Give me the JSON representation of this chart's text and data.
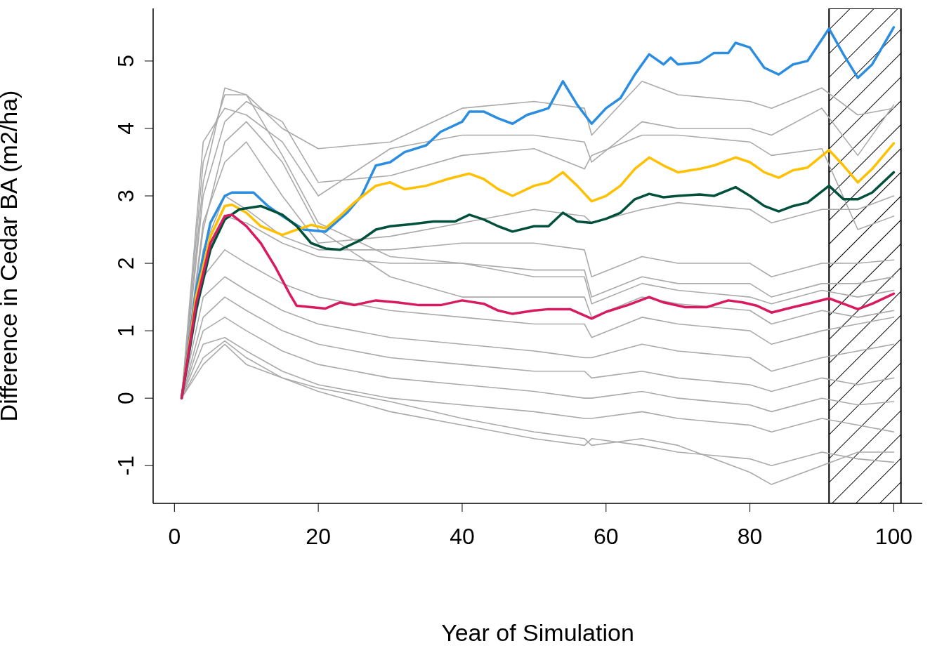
{
  "chart_data": {
    "type": "line",
    "xlabel": "Year of Simulation",
    "ylabel": "Difference in Cedar BA (m2/ha)",
    "xlim": [
      -2.96,
      103.96
    ],
    "ylim": [
      -1.56,
      5.78
    ],
    "xticks": [
      0,
      20,
      40,
      60,
      80,
      100
    ],
    "yticks": [
      -1,
      0,
      1,
      2,
      3,
      4,
      5
    ],
    "marker": "none",
    "line_style": "solid",
    "bands": [
      {
        "axis": "x",
        "from": 91,
        "to": 101,
        "color": "#000000"
      }
    ],
    "series": [
      {
        "color": "#aaaaaa",
        "x": [
          1,
          4,
          7,
          10,
          15,
          20,
          30,
          40,
          50,
          57,
          58,
          65,
          70,
          80,
          83,
          90,
          95,
          100
        ],
        "values": [
          0,
          3.5,
          4.5,
          4.5,
          4.0,
          3.7,
          3.8,
          4.3,
          4.4,
          4.3,
          3.9,
          4.7,
          4.5,
          4.4,
          4.3,
          4.6,
          4.2,
          4.3
        ]
      },
      {
        "color": "#aaaaaa",
        "x": [
          1,
          4,
          7,
          10,
          15,
          20,
          30,
          40,
          50,
          57,
          58,
          65,
          70,
          80,
          83,
          90,
          95,
          100
        ],
        "values": [
          0,
          3.8,
          4.3,
          4.2,
          3.8,
          3.0,
          3.7,
          3.9,
          3.9,
          3.8,
          3.5,
          4.1,
          4.0,
          4.0,
          3.9,
          4.3,
          3.6,
          4.35
        ]
      },
      {
        "color": "#aaaaaa",
        "x": [
          1,
          4,
          7,
          10,
          15,
          20,
          30,
          40,
          50,
          57,
          58,
          65,
          70,
          80,
          83,
          90,
          95,
          100
        ],
        "values": [
          0,
          3.0,
          4.1,
          4.4,
          4.1,
          3.2,
          3.3,
          3.6,
          3.7,
          3.4,
          3.6,
          3.9,
          3.9,
          3.8,
          3.6,
          3.7,
          2.5,
          2.7
        ]
      },
      {
        "color": "#aaaaaa",
        "x": [
          1,
          4,
          7,
          10,
          15,
          20,
          30,
          40,
          50,
          57,
          58,
          65,
          70,
          80,
          83,
          90,
          95,
          100
        ],
        "values": [
          0,
          3.2,
          4.6,
          4.5,
          3.6,
          2.6,
          2.1,
          2.0,
          1.8,
          1.8,
          1.4,
          1.7,
          1.6,
          1.5,
          1.4,
          1.6,
          1.5,
          1.6
        ]
      },
      {
        "color": "#aaaaaa",
        "x": [
          1,
          4,
          7,
          10,
          15,
          20,
          30,
          40,
          50,
          57,
          58,
          65,
          70,
          80,
          83,
          90,
          95,
          100
        ],
        "values": [
          0,
          2.5,
          3.8,
          4.1,
          3.5,
          2.5,
          1.8,
          1.5,
          1.5,
          1.5,
          1.2,
          1.5,
          1.4,
          1.3,
          1.1,
          1.3,
          1.2,
          1.3
        ]
      },
      {
        "color": "#aaaaaa",
        "x": [
          1,
          4,
          7,
          10,
          15,
          20,
          30,
          40,
          50,
          57,
          58,
          65,
          70,
          80,
          83,
          90,
          95,
          100
        ],
        "values": [
          0,
          2.6,
          3.5,
          3.8,
          3.0,
          2.3,
          2.4,
          2.6,
          2.8,
          2.7,
          2.6,
          2.8,
          2.9,
          2.8,
          2.6,
          2.8,
          2.8,
          3.0
        ]
      },
      {
        "color": "#aaaaaa",
        "x": [
          1,
          4,
          7,
          10,
          15,
          20,
          30,
          40,
          50,
          57,
          58,
          65,
          70,
          80,
          83,
          90,
          95,
          100
        ],
        "values": [
          0,
          2.2,
          3.0,
          2.8,
          2.4,
          2.2,
          2.2,
          2.3,
          2.3,
          2.2,
          1.8,
          2.1,
          2.0,
          2.0,
          1.8,
          2.0,
          2.0,
          2.05
        ]
      },
      {
        "color": "#aaaaaa",
        "x": [
          1,
          4,
          7,
          10,
          15,
          20,
          30,
          40,
          50,
          57,
          58,
          65,
          70,
          80,
          83,
          90,
          95,
          100
        ],
        "values": [
          0,
          2.0,
          2.7,
          2.6,
          2.3,
          2.1,
          2.0,
          2.0,
          1.9,
          1.9,
          1.5,
          1.8,
          1.7,
          1.7,
          1.5,
          1.7,
          1.7,
          1.8
        ]
      },
      {
        "color": "#aaaaaa",
        "x": [
          1,
          4,
          7,
          10,
          15,
          20,
          30,
          40,
          50,
          57,
          58,
          65,
          70,
          80,
          83,
          90,
          95,
          100
        ],
        "values": [
          0,
          1.8,
          2.2,
          2.0,
          1.7,
          1.5,
          1.3,
          1.2,
          1.1,
          1.1,
          0.9,
          1.2,
          1.1,
          1.0,
          0.8,
          1.0,
          1.1,
          1.2
        ]
      },
      {
        "color": "#aaaaaa",
        "x": [
          1,
          4,
          7,
          10,
          15,
          20,
          30,
          40,
          50,
          57,
          58,
          65,
          70,
          80,
          83,
          90,
          95,
          100
        ],
        "values": [
          0,
          1.5,
          1.8,
          1.6,
          1.3,
          1.1,
          0.9,
          0.8,
          0.7,
          0.6,
          0.6,
          0.8,
          0.7,
          0.6,
          0.4,
          0.6,
          0.7,
          0.8
        ]
      },
      {
        "color": "#aaaaaa",
        "x": [
          1,
          4,
          7,
          10,
          15,
          20,
          30,
          40,
          50,
          57,
          58,
          65,
          70,
          80,
          83,
          90,
          95,
          100
        ],
        "values": [
          0,
          1.2,
          1.5,
          1.3,
          1.0,
          0.8,
          0.6,
          0.5,
          0.4,
          0.4,
          0.3,
          0.4,
          0.3,
          0.2,
          0.1,
          0.3,
          0.2,
          0.3
        ]
      },
      {
        "color": "#aaaaaa",
        "x": [
          1,
          4,
          7,
          10,
          15,
          20,
          30,
          40,
          50,
          57,
          58,
          65,
          70,
          80,
          83,
          90,
          95,
          100
        ],
        "values": [
          0,
          1.0,
          1.2,
          1.0,
          0.7,
          0.5,
          0.3,
          0.2,
          0.1,
          0.0,
          0.0,
          0.1,
          0.0,
          -0.1,
          -0.2,
          0.0,
          -0.1,
          -0.05
        ]
      },
      {
        "color": "#aaaaaa",
        "x": [
          1,
          4,
          7,
          10,
          15,
          20,
          30,
          40,
          50,
          57,
          58,
          65,
          70,
          80,
          83,
          90,
          95,
          100
        ],
        "values": [
          0,
          0.8,
          0.9,
          0.7,
          0.4,
          0.2,
          0.0,
          -0.1,
          -0.2,
          -0.3,
          -0.3,
          -0.2,
          -0.3,
          -0.4,
          -0.5,
          -0.3,
          -0.4,
          -0.5
        ]
      },
      {
        "color": "#aaaaaa",
        "x": [
          1,
          4,
          7,
          10,
          15,
          20,
          30,
          40,
          50,
          57,
          58,
          65,
          70,
          80,
          83,
          90,
          95,
          100
        ],
        "values": [
          0,
          0.6,
          0.85,
          0.6,
          0.3,
          0.1,
          -0.2,
          -0.4,
          -0.6,
          -0.7,
          -0.6,
          -0.7,
          -0.8,
          -0.9,
          -1.0,
          -0.8,
          -0.9,
          -0.95
        ]
      },
      {
        "color": "#aaaaaa",
        "x": [
          1,
          4,
          7,
          10,
          15,
          20,
          30,
          40,
          50,
          57,
          58,
          65,
          70,
          80,
          83,
          90,
          95,
          100
        ],
        "values": [
          0,
          0.5,
          0.8,
          0.5,
          0.3,
          0.15,
          -0.05,
          -0.3,
          -0.5,
          -0.6,
          -0.7,
          -0.6,
          -0.7,
          -1.1,
          -1.28,
          -1.0,
          -0.8,
          -0.8
        ]
      },
      {
        "color": "#2b8de0",
        "x": [
          1,
          3,
          5,
          7,
          8,
          11,
          13,
          15,
          18,
          21,
          24,
          26,
          28,
          30,
          32,
          35,
          37,
          40,
          41,
          43,
          45,
          47,
          49,
          52,
          54,
          56,
          58,
          60,
          62,
          64,
          66,
          68,
          69,
          70,
          73,
          75,
          77,
          78,
          80,
          82,
          84,
          86,
          88,
          91,
          93,
          95,
          97,
          100
        ],
        "values": [
          0,
          1.6,
          2.6,
          3.0,
          3.05,
          3.05,
          2.85,
          2.7,
          2.5,
          2.47,
          2.75,
          3.0,
          3.45,
          3.5,
          3.65,
          3.75,
          3.95,
          4.1,
          4.25,
          4.25,
          4.15,
          4.07,
          4.2,
          4.3,
          4.7,
          4.35,
          4.07,
          4.3,
          4.45,
          4.8,
          5.1,
          4.95,
          5.05,
          4.95,
          4.98,
          5.12,
          5.12,
          5.27,
          5.2,
          4.9,
          4.8,
          4.95,
          5.0,
          5.48,
          5.1,
          4.75,
          4.95,
          5.5
        ]
      },
      {
        "color": "#ffc000",
        "x": [
          1,
          3,
          5,
          7,
          8,
          10,
          12,
          15,
          17,
          19,
          21,
          23,
          25,
          28,
          30,
          32,
          35,
          38,
          41,
          43,
          45,
          47,
          50,
          52,
          54,
          56,
          58,
          60,
          62,
          64,
          66,
          68,
          70,
          73,
          75,
          78,
          80,
          82,
          84,
          86,
          88,
          91,
          93,
          95,
          97,
          100
        ],
        "values": [
          0,
          1.5,
          2.4,
          2.85,
          2.87,
          2.75,
          2.55,
          2.42,
          2.5,
          2.57,
          2.52,
          2.7,
          2.9,
          3.15,
          3.2,
          3.1,
          3.15,
          3.25,
          3.33,
          3.25,
          3.1,
          3.0,
          3.15,
          3.2,
          3.35,
          3.15,
          2.92,
          3.0,
          3.15,
          3.4,
          3.57,
          3.45,
          3.35,
          3.4,
          3.45,
          3.57,
          3.5,
          3.35,
          3.27,
          3.38,
          3.42,
          3.68,
          3.45,
          3.2,
          3.4,
          3.78
        ]
      },
      {
        "color": "#00503c",
        "x": [
          1,
          3,
          5,
          7,
          9,
          12,
          15,
          17,
          19,
          21,
          23,
          26,
          28,
          30,
          33,
          36,
          39,
          41,
          43,
          45,
          47,
          50,
          52,
          54,
          56,
          58,
          60,
          62,
          64,
          66,
          68,
          70,
          73,
          75,
          78,
          80,
          82,
          84,
          86,
          88,
          91,
          93,
          95,
          97,
          100
        ],
        "values": [
          0,
          1.3,
          2.2,
          2.65,
          2.8,
          2.85,
          2.72,
          2.55,
          2.3,
          2.22,
          2.2,
          2.35,
          2.5,
          2.55,
          2.58,
          2.62,
          2.62,
          2.72,
          2.65,
          2.55,
          2.47,
          2.55,
          2.55,
          2.75,
          2.62,
          2.6,
          2.66,
          2.75,
          2.95,
          3.03,
          2.98,
          3.0,
          3.02,
          3.0,
          3.13,
          3.0,
          2.85,
          2.77,
          2.85,
          2.9,
          3.15,
          2.95,
          2.95,
          3.05,
          3.35
        ]
      },
      {
        "color": "#d81b60",
        "x": [
          1,
          3,
          5,
          7,
          8,
          10,
          12,
          14,
          16,
          17,
          19,
          21,
          23,
          25,
          28,
          31,
          34,
          37,
          40,
          43,
          45,
          47,
          50,
          52,
          55,
          58,
          60,
          63,
          66,
          68,
          71,
          74,
          77,
          79,
          81,
          83,
          86,
          88,
          91,
          93,
          95,
          97,
          100
        ],
        "values": [
          0,
          1.4,
          2.3,
          2.7,
          2.72,
          2.55,
          2.3,
          1.95,
          1.55,
          1.37,
          1.35,
          1.33,
          1.42,
          1.38,
          1.45,
          1.42,
          1.38,
          1.38,
          1.45,
          1.4,
          1.3,
          1.25,
          1.3,
          1.32,
          1.32,
          1.18,
          1.28,
          1.38,
          1.5,
          1.42,
          1.35,
          1.35,
          1.45,
          1.42,
          1.37,
          1.27,
          1.35,
          1.4,
          1.48,
          1.4,
          1.32,
          1.4,
          1.55
        ]
      }
    ]
  }
}
